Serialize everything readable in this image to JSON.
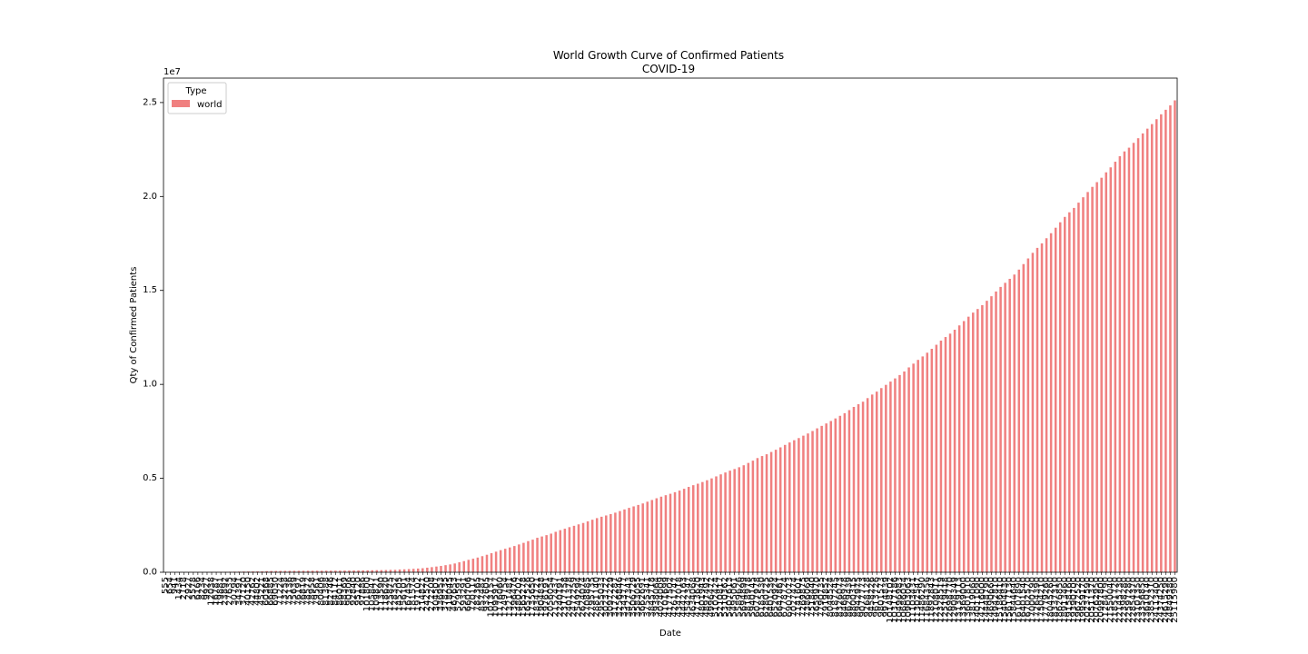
{
  "chart_data": {
    "type": "bar",
    "title": "World Growth Curve of Confirmed Patients",
    "subtitle": "COVID-19",
    "xlabel": "Date",
    "ylabel": "Qty of Confirmed Patients",
    "y_offset_label": "1e7",
    "ylim": [
      0,
      26300000
    ],
    "yticks": [
      0,
      5000000,
      10000000,
      15000000,
      20000000,
      25000000
    ],
    "ytick_labels": [
      "0.0",
      "0.5",
      "1.0",
      "1.5",
      "2.0",
      "2.5"
    ],
    "legend": {
      "title": "Type",
      "position": "top-left"
    },
    "grid": false,
    "bar_color": "#f08080",
    "series": [
      {
        "name": "world",
        "values": [
          555,
          654,
          941,
          1434,
          2118,
          2927,
          5578,
          6166,
          8234,
          9927,
          12038,
          16787,
          19881,
          23892,
          27635,
          30794,
          34391,
          37120,
          40150,
          42762,
          44802,
          45221,
          60368,
          66885,
          69030,
          71224,
          73258,
          75136,
          75639,
          76197,
          76819,
          78572,
          78958,
          79561,
          80406,
          81388,
          82746,
          84112,
          86011,
          88369,
          90306,
          92840,
          95120,
          97886,
          101800,
          105847,
          109821,
          113590,
          118620,
          125875,
          128352,
          145205,
          156101,
          167454,
          181574,
          197102,
          214821,
          242570,
          272208,
          304507,
          336953,
          378235,
          418045,
          467653,
          529591,
          593291,
          660706,
          720117,
          782365,
          857487,
          932605,
          1013157,
          1095917,
          1176060,
          1249754,
          1321481,
          1396476,
          1480202,
          1565278,
          1657526,
          1735650,
          1834721,
          1904838,
          1976191,
          2056054,
          2152437,
          2240191,
          2317758,
          2401378,
          2472259,
          2549294,
          2624074,
          2708885,
          2795735,
          2881140,
          2955033,
          3023722,
          3097229,
          3172287,
          3256846,
          3343777,
          3427343,
          3506729,
          3583055,
          3662691,
          3755341,
          3845718,
          3938064,
          4024009,
          4101699,
          4177502,
          4261747,
          4347018,
          4442163,
          4542347,
          4634068,
          4713620,
          4801943,
          4897492,
          4996472,
          5102424,
          5210817,
          5310362,
          5407613,
          5495061,
          5589626,
          5694899,
          5818978,
          5940145,
          6077978,
          6185530,
          6280725,
          6401536,
          6520924,
          6647861,
          6778724,
          6907073,
          7027474,
          7141601,
          7269875,
          7386069,
          7518440,
          7659970,
          7790735,
          7919852,
          8048524,
          8187245,
          8326073,
          8466978,
          8629439,
          8800315,
          8942975,
          9077773,
          9268128,
          9458226,
          9613726,
          9801573,
          9974839,
          10148102,
          10317186,
          10496983,
          10686034,
          10903063,
          11103431,
          11302547,
          11486290,
          11684356,
          11892843,
          12108011,
          12328519,
          12519418,
          12698770,
          12908349,
          13139113,
          13369000,
          13601810,
          13819060,
          14011090,
          14216000,
          14448790,
          14690660,
          14942810,
          15186410,
          15404830,
          15617130,
          15844640,
          16107890,
          16401540,
          16702570,
          17000790,
          17264390,
          17504210,
          17779260,
          18045260,
          18337310,
          18626850,
          18913460,
          19158160,
          19390700,
          19672520,
          19959170,
          20237590,
          20511370,
          20762950,
          20997800,
          21284790,
          21550040,
          21851720,
          22145730,
          22398280,
          22597280,
          22854370,
          23101350,
          23356850,
          23610140,
          23852310,
          24113400,
          24374250,
          24615290,
          24849380,
          25115980
        ]
      }
    ],
    "categories": [
      "555",
      "654",
      "941",
      "1434",
      "2118",
      "2927",
      "5578",
      "6166",
      "8234",
      "9927",
      "12038",
      "16787",
      "19881",
      "23892",
      "27635",
      "30794",
      "34391",
      "37120",
      "40150",
      "42762",
      "44802",
      "45221",
      "60368",
      "66885",
      "69030",
      "71224",
      "73258",
      "75136",
      "75639",
      "76197",
      "76819",
      "78572",
      "78958",
      "79561",
      "80406",
      "81388",
      "82746",
      "84112",
      "86011",
      "88369",
      "90306",
      "92840",
      "95120",
      "97886",
      "101800",
      "105847",
      "109821",
      "113590",
      "118620",
      "125875",
      "128352",
      "145205",
      "156101",
      "167454",
      "181574",
      "197102",
      "214821",
      "242570",
      "272208",
      "304507",
      "336953",
      "378235",
      "418045",
      "467653",
      "529591",
      "593291",
      "660706",
      "720117",
      "782365",
      "857487",
      "932605",
      "1013157",
      "1095917",
      "1176060",
      "1249754",
      "1321481",
      "1396476",
      "1480202",
      "1565278",
      "1657526",
      "1735650",
      "1834721",
      "1904838",
      "1976191",
      "2056054",
      "2152437",
      "2240191",
      "2317758",
      "2401378",
      "2472259",
      "2549294",
      "2624074",
      "2708885",
      "2795735",
      "2881140",
      "2955033",
      "3023722",
      "3097229",
      "3172287",
      "3256846",
      "3343777",
      "3427343",
      "3506729",
      "3583055",
      "3662691",
      "3755341",
      "3845718",
      "3938064",
      "4024009",
      "4101699",
      "4177502",
      "4261747",
      "4347018",
      "4442163",
      "4542347",
      "4634068",
      "4713620",
      "4801943",
      "4897492",
      "4996472",
      "5102424",
      "5210817",
      "5310362",
      "5407613",
      "5495061",
      "5589626",
      "5694899",
      "5818978",
      "5940145",
      "6077978",
      "6185530",
      "6280725",
      "6401536",
      "6520924",
      "6647861",
      "6778724",
      "6907073",
      "7027474",
      "7141601",
      "7269875",
      "7386069",
      "7518440",
      "7659970",
      "7790735",
      "7919852",
      "8048524",
      "8187245",
      "8326073",
      "8466978",
      "8629439",
      "8800315",
      "8942975",
      "9077773",
      "9268128",
      "9458226",
      "9613726",
      "9801573",
      "9974839",
      "10148102",
      "10317186",
      "10496983",
      "10686034",
      "10903063",
      "11103431",
      "11302547",
      "11486290",
      "11684356",
      "11892843",
      "12108011",
      "12328519",
      "12519418",
      "12698770",
      "12908349",
      "13139113",
      "13369000",
      "13601810",
      "13819060",
      "14011090",
      "14216000",
      "14448790",
      "14690660",
      "14942810",
      "15186410",
      "15404830",
      "15617130",
      "15844640",
      "16107890",
      "16401540",
      "16702570",
      "17000790",
      "17264390",
      "17504210",
      "17779260",
      "18045260",
      "18337310",
      "18626850",
      "18913460",
      "19158160",
      "19390700",
      "19672520",
      "19959170",
      "20237590",
      "20511370",
      "20762950",
      "20997800",
      "21284790",
      "21550040",
      "21851720",
      "22145730",
      "22398280",
      "22597280",
      "22854370",
      "23101350",
      "23356850",
      "23610140",
      "23852310",
      "24113400",
      "24374250",
      "24615290",
      "24849380",
      "25115980"
    ]
  }
}
